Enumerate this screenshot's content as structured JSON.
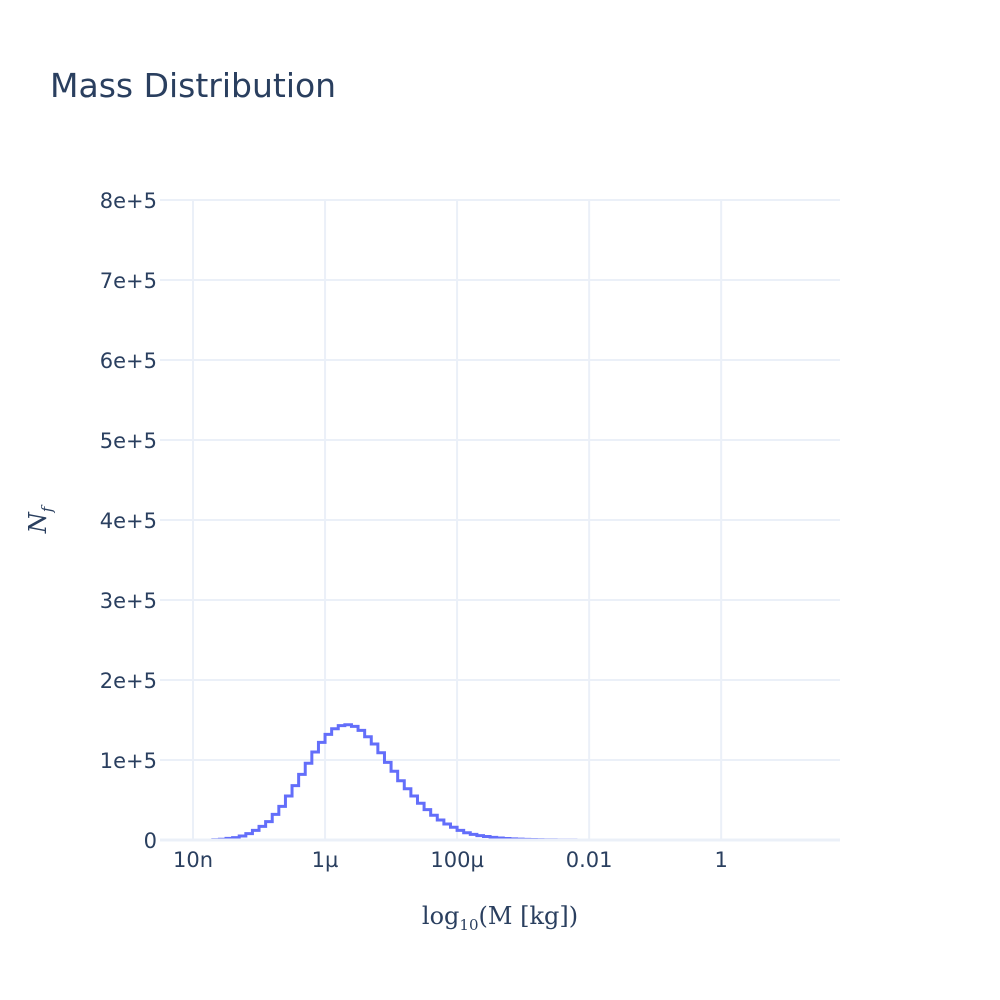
{
  "chart_data": {
    "type": "histogram",
    "title": "Mass Distribution",
    "xlabel": {
      "base": "log",
      "sub": "10",
      "rest": "(M [kg])"
    },
    "ylabel": {
      "main": "N",
      "sub": "f"
    },
    "x_scale": "log10",
    "xlim_log10": [
      -8.5,
      1.8
    ],
    "ylim": [
      0,
      800000
    ],
    "x_tick_labels": [
      "10n",
      "1µ",
      "100µ",
      "0.01",
      "1"
    ],
    "x_tick_log10": [
      -8,
      -6,
      -4,
      -2,
      0
    ],
    "y_tick_values": [
      0,
      100000,
      200000,
      300000,
      400000,
      500000,
      600000,
      700000,
      800000
    ],
    "y_tick_labels": [
      "0",
      "1e+5",
      "2e+5",
      "3e+5",
      "4e+5",
      "5e+5",
      "6e+5",
      "7e+5",
      "8e+5"
    ],
    "grid": true,
    "line_color": "#636efa",
    "bins_log10_start": [
      -8.5,
      -8.4,
      -8.3,
      -8.2,
      -8.1,
      -8.0,
      -7.9,
      -7.8,
      -7.7,
      -7.6,
      -7.5,
      -7.4,
      -7.3,
      -7.2,
      -7.1,
      -7.0,
      -6.9,
      -6.8,
      -6.7,
      -6.6,
      -6.5,
      -6.4,
      -6.3,
      -6.2,
      -6.1,
      -6.0,
      -5.9,
      -5.8,
      -5.7,
      -5.6,
      -5.5,
      -5.4,
      -5.3,
      -5.2,
      -5.1,
      -5.0,
      -4.9,
      -4.8,
      -4.7,
      -4.6,
      -4.5,
      -4.4,
      -4.3,
      -4.2,
      -4.1,
      -4.0,
      -3.9,
      -3.8,
      -3.7,
      -3.6,
      -3.5,
      -3.4,
      -3.3,
      -3.2,
      -3.1,
      -3.0,
      -2.9,
      -2.8,
      -2.7,
      -2.6,
      -2.5,
      -2.4,
      -2.3,
      -2.2,
      -2.1,
      -2.0,
      -1.9,
      -1.8,
      -1.7,
      -1.6,
      -1.5,
      -1.4,
      -1.3,
      -1.2,
      -1.1,
      -1.0,
      -0.9,
      -0.8,
      -0.7,
      -0.6,
      -0.5,
      -0.4,
      -0.3,
      -0.2,
      -0.1,
      0.0,
      0.1,
      0.2,
      0.3,
      0.4,
      0.5,
      0.6,
      0.7,
      0.8,
      0.9,
      1.0,
      1.1,
      1.2,
      1.3,
      1.4,
      1.5,
      1.6,
      1.7
    ],
    "bin_width_log10": 0.1,
    "counts": [
      0,
      0,
      0,
      0,
      0,
      0,
      0,
      0,
      500,
      1000,
      2000,
      3000,
      5000,
      8000,
      12000,
      17000,
      23000,
      32000,
      42000,
      55000,
      68000,
      82000,
      96000,
      110000,
      122000,
      132000,
      139000,
      143000,
      144000,
      142000,
      137000,
      129000,
      120000,
      109000,
      97000,
      86000,
      74000,
      64000,
      55000,
      46000,
      38000,
      31000,
      25000,
      20000,
      16000,
      12000,
      9000,
      7000,
      5500,
      4300,
      3300,
      2500,
      1900,
      1400,
      1100,
      800,
      600,
      450,
      330,
      250,
      180,
      130,
      100,
      70,
      50,
      35,
      25,
      18,
      12,
      9,
      6,
      4,
      3,
      2,
      1,
      1,
      0,
      0,
      0,
      0,
      0,
      0,
      0,
      0,
      0,
      0,
      0,
      0,
      0,
      0,
      0,
      0,
      0,
      0,
      0,
      0,
      0,
      0,
      0,
      0,
      0,
      0,
      0
    ]
  }
}
